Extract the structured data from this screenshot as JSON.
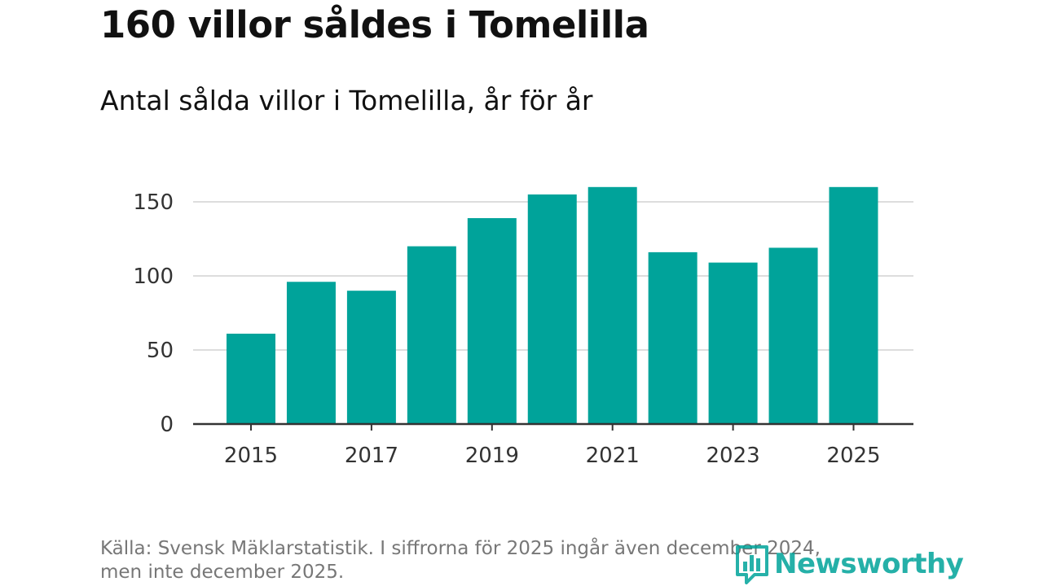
{
  "title": "160 villor såldes i Tomelilla",
  "subtitle": "Antal sålda villor i Tomelilla, år för år",
  "source_line1": "Källa: Svensk Mäklarstatistik. I siffrorna för 2025 ingår även december 2024,",
  "source_line2": "men inte december 2025.",
  "logo": {
    "text": "Newsworthy",
    "icon": "bar-chart-icon"
  },
  "colors": {
    "bar": "#00a39a",
    "grid": "#dddddd",
    "axis": "#333333",
    "tick_text": "#333333"
  },
  "chart_data": {
    "type": "bar",
    "title": "Antal sålda villor i Tomelilla, år för år",
    "xlabel": "",
    "ylabel": "",
    "categories": [
      "2015",
      "2016",
      "2017",
      "2018",
      "2019",
      "2020",
      "2021",
      "2022",
      "2023",
      "2024",
      "2025"
    ],
    "values": [
      61,
      96,
      90,
      120,
      139,
      155,
      160,
      116,
      109,
      119,
      160
    ],
    "x_tick_labels": [
      "2015",
      "2017",
      "2019",
      "2021",
      "2023",
      "2025"
    ],
    "y_ticks": [
      0,
      50,
      100,
      150
    ],
    "ylim": [
      0,
      160
    ],
    "grid": true
  }
}
